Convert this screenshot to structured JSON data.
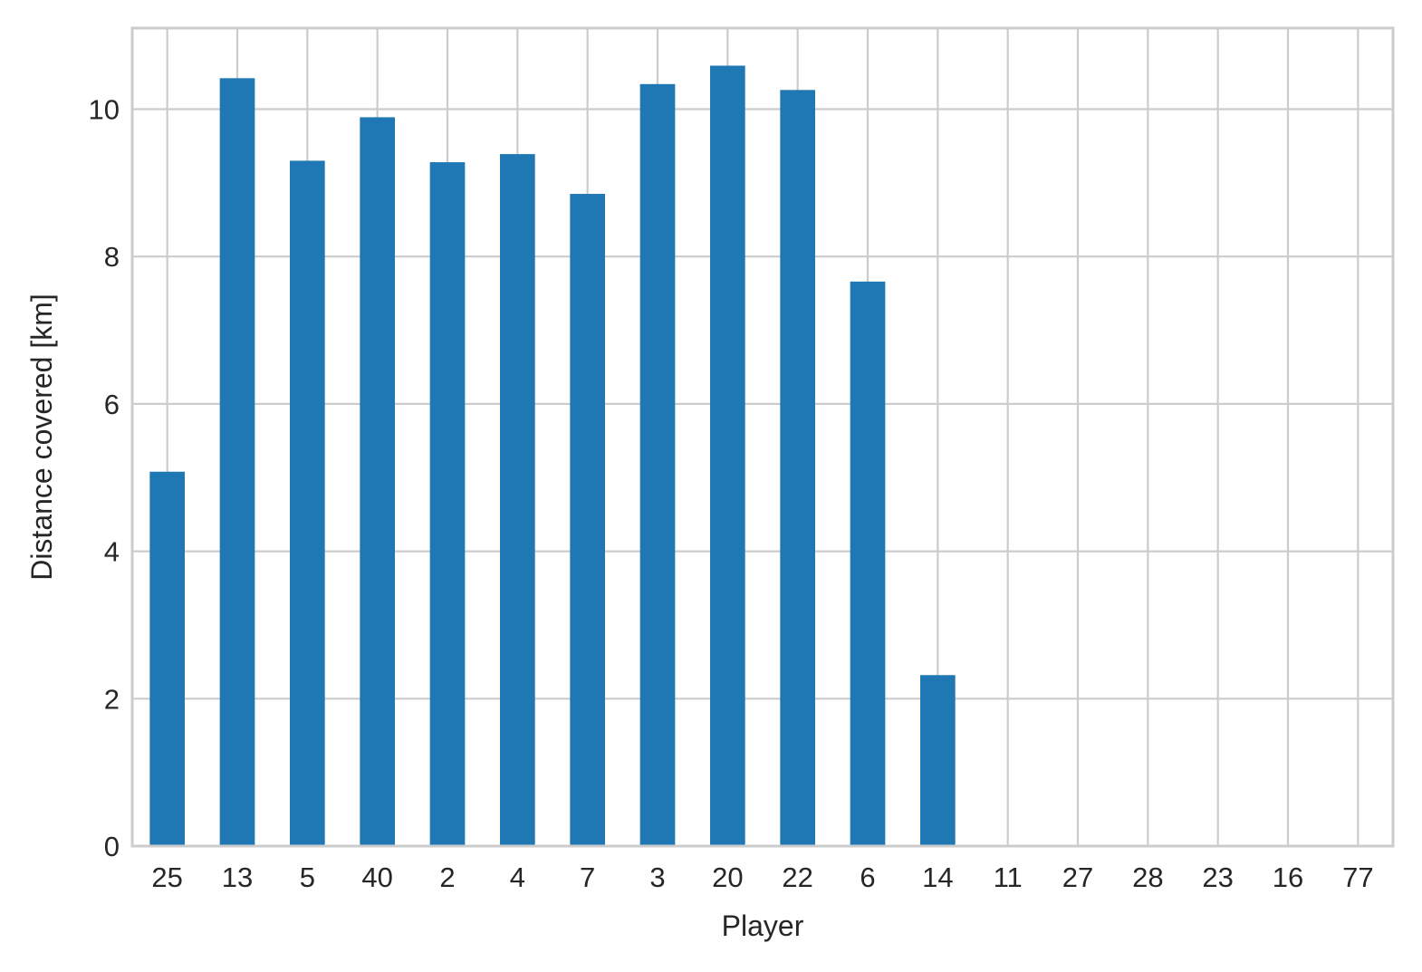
{
  "chart_data": {
    "type": "bar",
    "title": "",
    "xlabel": "Player",
    "ylabel": "Distance covered [km]",
    "categories": [
      "25",
      "13",
      "5",
      "40",
      "2",
      "4",
      "7",
      "3",
      "20",
      "22",
      "6",
      "14",
      "11",
      "27",
      "28",
      "23",
      "16",
      "77"
    ],
    "values": [
      5.08,
      10.42,
      9.3,
      9.89,
      9.28,
      9.39,
      8.85,
      10.34,
      10.59,
      10.26,
      7.66,
      2.32,
      0,
      0,
      0,
      0,
      0,
      0
    ],
    "ylim": [
      0,
      11.1
    ],
    "yticks": [
      0,
      2,
      4,
      6,
      8,
      10
    ],
    "grid": true,
    "legend": "none",
    "colors": {
      "bar": "#1f77b4",
      "grid": "#cccccc",
      "frame": "#cccccc",
      "text": "#262626"
    }
  }
}
